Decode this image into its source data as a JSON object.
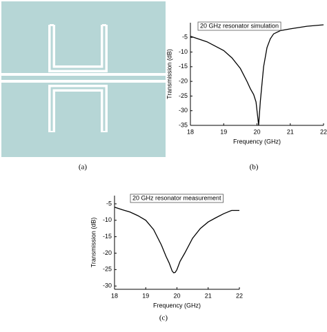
{
  "panel_labels": [
    "(a)",
    "(b)",
    "(c)"
  ],
  "chart_data": [
    {
      "type": "line",
      "annotation": "20 GHz resonator simulation",
      "x_label": "Frequency (GHz)",
      "y_label": "Transmission (dB)",
      "x": [
        18,
        18.5,
        19,
        19.25,
        19.5,
        19.7,
        19.8,
        19.9,
        19.97,
        20.02,
        20.05,
        20.1,
        20.2,
        20.3,
        20.4,
        20.5,
        20.7,
        21,
        21.5,
        22
      ],
      "values": [
        -4.6,
        -6.5,
        -9.5,
        -12,
        -15.6,
        -20,
        -22.5,
        -24.5,
        -27,
        -32,
        -35,
        -27,
        -15,
        -8.5,
        -5.5,
        -3.8,
        -2.7,
        -2.1,
        -1.2,
        -0.7
      ],
      "color": "#000000",
      "xlim": [
        18,
        22
      ],
      "ylim": [
        -35,
        0
      ],
      "xticks": [
        18,
        19,
        20,
        21,
        22
      ],
      "yticks": [
        -35,
        -30,
        -25,
        -20,
        -15,
        -10,
        -5
      ]
    },
    {
      "type": "line",
      "annotation": "20 GHz resonator measurement",
      "x_label": "Frequency (GHz)",
      "y_label": "Transmission (dB)",
      "x": [
        18,
        18.25,
        18.5,
        18.75,
        19,
        19.25,
        19.5,
        19.65,
        19.75,
        19.85,
        19.9,
        19.95,
        20,
        20.1,
        20.25,
        20.5,
        20.75,
        21,
        21.25,
        21.5,
        21.75,
        22
      ],
      "values": [
        -6,
        -6.8,
        -7.5,
        -8.6,
        -10,
        -12.8,
        -17.5,
        -21,
        -23,
        -25.5,
        -26,
        -25.8,
        -25,
        -22.5,
        -20,
        -15.5,
        -12.5,
        -10.5,
        -9.2,
        -8,
        -7,
        -7
      ],
      "color": "#000000",
      "xlim": [
        18,
        22
      ],
      "ylim": [
        -31,
        -2.5
      ],
      "xticks": [
        18,
        19,
        20,
        21,
        22
      ],
      "yticks": [
        -30,
        -25,
        -20,
        -15,
        -10,
        -5
      ]
    }
  ]
}
